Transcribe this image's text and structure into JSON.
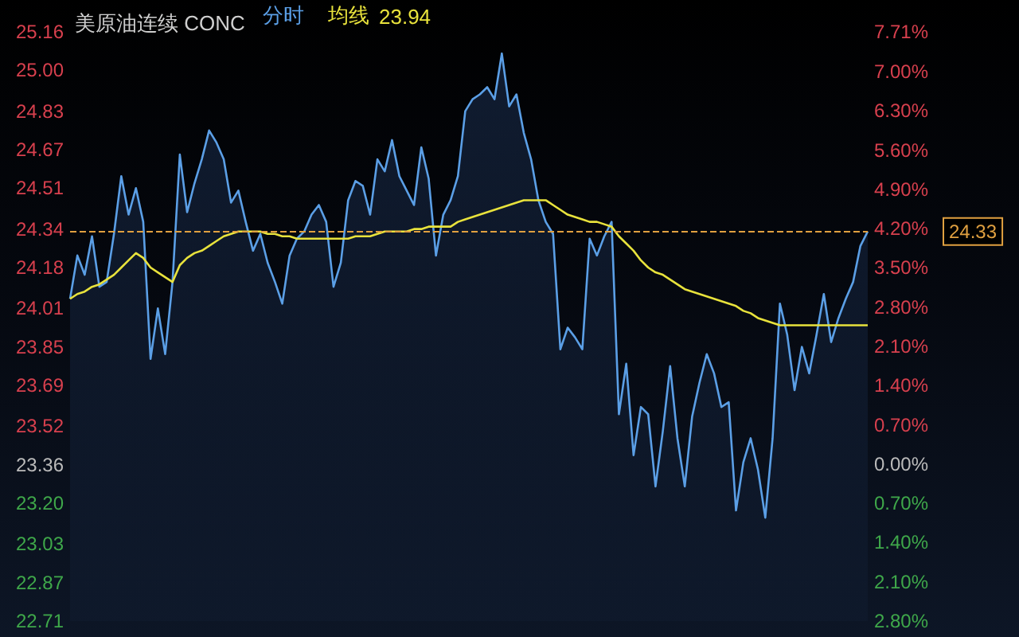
{
  "chart_data": {
    "type": "area",
    "title": "美原油连续 CONC",
    "categories": [
      null,
      null,
      null,
      null,
      null,
      null,
      null,
      null,
      null,
      null,
      null,
      null,
      null,
      null,
      null,
      null,
      null,
      null,
      null,
      null,
      null,
      null,
      null,
      null,
      null,
      null,
      null,
      null,
      null,
      null,
      null,
      null,
      null,
      null,
      null,
      null,
      null,
      null,
      null,
      null,
      null,
      null,
      null,
      null,
      null,
      null,
      null,
      null,
      null,
      null,
      null,
      null,
      null,
      null,
      null,
      null,
      null,
      null,
      null,
      null,
      null,
      null,
      null,
      null,
      null,
      null,
      null,
      null,
      null,
      null,
      null,
      null,
      null,
      null,
      null,
      null,
      null,
      null,
      null,
      null,
      null,
      null,
      null,
      null,
      null,
      null,
      null,
      null,
      null,
      null,
      null,
      null,
      null,
      null,
      null,
      null,
      null,
      null,
      null,
      null,
      null,
      null,
      null,
      null,
      null,
      null,
      null,
      null,
      null,
      null
    ],
    "series": [
      {
        "name": "分时",
        "type": "area",
        "color": "#5b9fe6",
        "values": [
          24.05,
          24.23,
          24.15,
          24.31,
          24.1,
          24.12,
          24.32,
          24.56,
          24.4,
          24.51,
          24.37,
          23.8,
          24.01,
          23.82,
          24.12,
          24.65,
          24.41,
          24.53,
          24.63,
          24.75,
          24.7,
          24.63,
          24.45,
          24.5,
          24.37,
          24.25,
          24.32,
          24.2,
          24.12,
          24.03,
          24.23,
          24.3,
          24.33,
          24.4,
          24.44,
          24.37,
          24.1,
          24.2,
          24.46,
          24.54,
          24.52,
          24.4,
          24.63,
          24.58,
          24.71,
          24.56,
          24.5,
          24.44,
          24.68,
          24.55,
          24.23,
          24.4,
          24.46,
          24.56,
          24.83,
          24.88,
          24.9,
          24.93,
          24.88,
          25.07,
          24.85,
          24.9,
          24.74,
          24.63,
          24.46,
          24.37,
          24.32,
          23.84,
          23.93,
          23.89,
          23.84,
          24.3,
          24.23,
          24.31,
          24.37,
          23.57,
          23.78,
          23.4,
          23.6,
          23.57,
          23.27,
          23.5,
          23.77,
          23.47,
          23.27,
          23.56,
          23.7,
          23.82,
          23.74,
          23.6,
          23.62,
          23.17,
          23.37,
          23.47,
          23.34,
          23.14,
          23.47,
          24.03,
          23.9,
          23.67,
          23.85,
          23.74,
          23.9,
          24.07,
          23.87,
          23.97,
          24.05,
          24.12,
          24.27,
          24.33
        ]
      },
      {
        "name": "均线",
        "type": "line",
        "color": "#e8e23c",
        "values": [
          24.05,
          24.07,
          24.08,
          24.1,
          24.11,
          24.13,
          24.15,
          24.18,
          24.21,
          24.24,
          24.22,
          24.18,
          24.16,
          24.14,
          24.12,
          24.19,
          24.22,
          24.24,
          24.25,
          24.27,
          24.29,
          24.31,
          24.32,
          24.33,
          24.33,
          24.33,
          24.33,
          24.32,
          24.32,
          24.31,
          24.31,
          24.3,
          24.3,
          24.3,
          24.3,
          24.3,
          24.3,
          24.3,
          24.3,
          24.31,
          24.31,
          24.31,
          24.32,
          24.33,
          24.33,
          24.33,
          24.33,
          24.34,
          24.34,
          24.35,
          24.35,
          24.35,
          24.35,
          24.37,
          24.38,
          24.39,
          24.4,
          24.41,
          24.42,
          24.43,
          24.44,
          24.45,
          24.46,
          24.46,
          24.46,
          24.46,
          24.44,
          24.42,
          24.4,
          24.39,
          24.38,
          24.37,
          24.37,
          24.36,
          24.35,
          24.31,
          24.28,
          24.25,
          24.21,
          24.18,
          24.16,
          24.15,
          24.13,
          24.11,
          24.09,
          24.08,
          24.07,
          24.06,
          24.05,
          24.04,
          24.03,
          24.02,
          24.0,
          23.99,
          23.97,
          23.96,
          23.95,
          23.94,
          23.94,
          23.94,
          23.94,
          23.94,
          23.94,
          23.94,
          23.94,
          23.94,
          23.94,
          23.94,
          23.94,
          23.94
        ]
      }
    ],
    "ylim": [
      22.71,
      25.16
    ],
    "yticks": [
      25.16,
      {
        "value": 25,
        "label": "25.00"
      },
      24.83,
      24.67,
      24.51,
      24.34,
      24.18,
      24.01,
      23.85,
      23.69,
      23.52,
      23.36,
      {
        "value": 23.2,
        "label": "23.20"
      },
      23.03,
      22.87,
      22.71
    ],
    "y2lim": [
      -2.8,
      7.71
    ],
    "y2ticks": [
      {
        "value": 7.71,
        "label": "7.71%"
      },
      {
        "value": 7,
        "label": "7.00%"
      },
      {
        "value": 6.3,
        "label": "6.30%"
      },
      {
        "value": 5.6,
        "label": "5.60%"
      },
      {
        "value": 4.9,
        "label": "4.90%"
      },
      {
        "value": 4.2,
        "label": "4.20%"
      },
      {
        "value": 3.5,
        "label": "3.50%"
      },
      {
        "value": 2.8,
        "label": "2.80%"
      },
      {
        "value": 2.1,
        "label": "2.10%"
      },
      {
        "value": 1.4,
        "label": "1.40%"
      },
      {
        "value": 0.7,
        "label": "0.70%"
      },
      {
        "value": 0,
        "label": "0.00%"
      },
      {
        "value": -0.7,
        "label": "0.70%"
      },
      {
        "value": -1.4,
        "label": "1.40%"
      },
      {
        "value": -2.1,
        "label": "2.10%"
      },
      {
        "value": -2.8,
        "label": "2.80%"
      }
    ],
    "ref_lines": [
      {
        "axis": "y",
        "value": 24.33,
        "label": "24.33",
        "color": "#e0a040",
        "line_style": "dashed"
      }
    ],
    "annotations": [
      "23.94"
    ],
    "legend": "top"
  }
}
